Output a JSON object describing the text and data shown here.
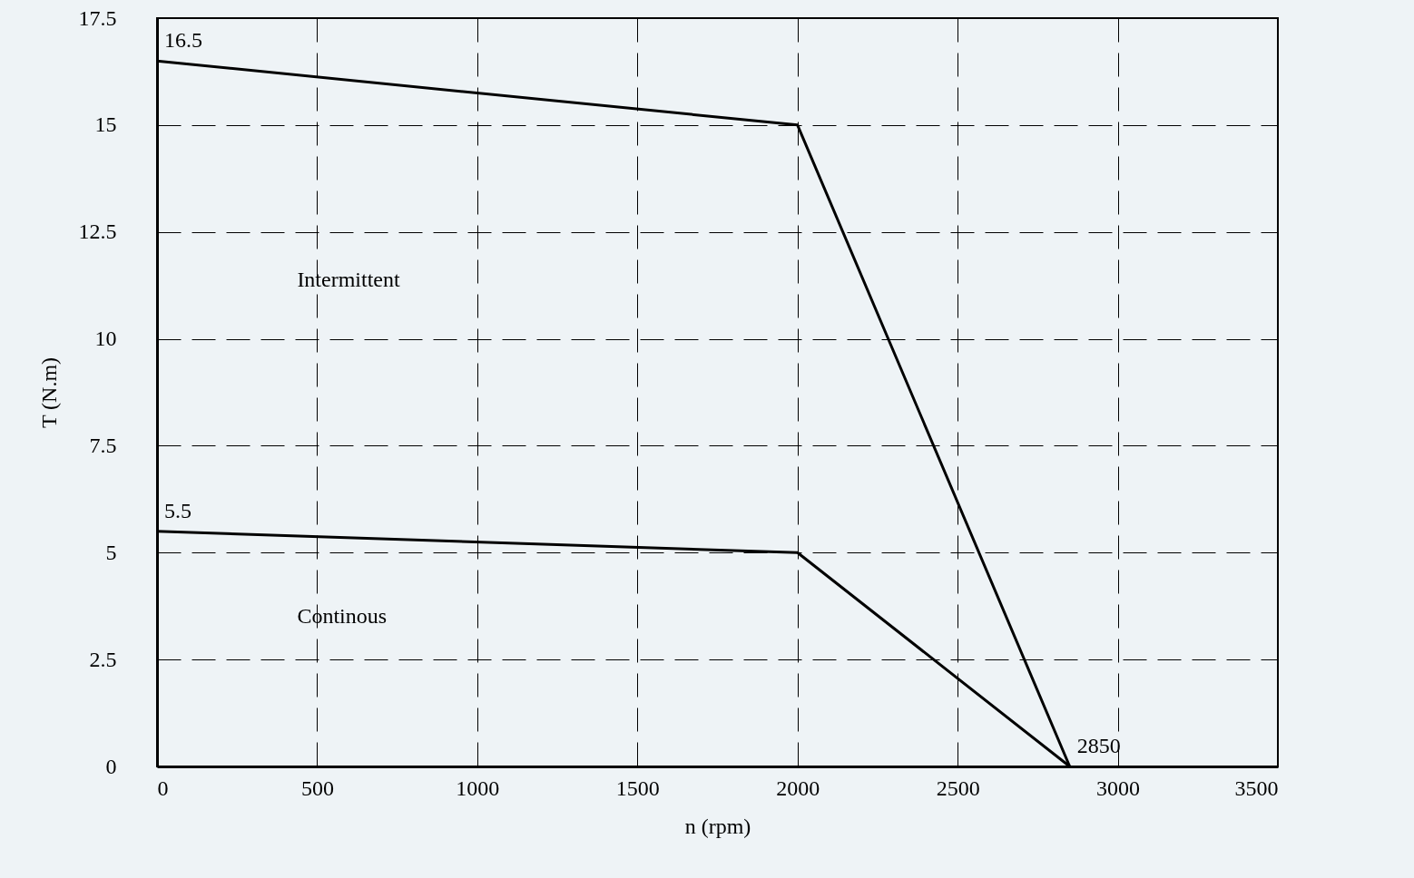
{
  "chart_data": {
    "type": "line",
    "xlabel": "n (rpm)",
    "ylabel": "T (N.m)",
    "x": [
      0,
      2000,
      2850
    ],
    "series": [
      {
        "color": "#000000",
        "values": [
          16.5,
          15,
          0
        ],
        "value_labels": [
          "16.5",
          null,
          null
        ]
      },
      {
        "color": "#000000",
        "values": [
          5.5,
          5,
          0
        ],
        "value_labels": [
          "5.5",
          null,
          null
        ]
      }
    ],
    "xlim": [
      0,
      3500
    ],
    "xticks": [
      0,
      500,
      1000,
      1500,
      2000,
      2500,
      3000,
      3500
    ],
    "ylim": [
      0,
      17.5
    ],
    "yticks": [
      0,
      2.5,
      5,
      7.5,
      10,
      12.5,
      15,
      17.5
    ],
    "grid": true,
    "marker": "none",
    "line_style": "solid",
    "annotations": [
      {
        "text": "2850",
        "x": 2850,
        "y": 0
      },
      "Intermittent",
      "Continous"
    ]
  }
}
